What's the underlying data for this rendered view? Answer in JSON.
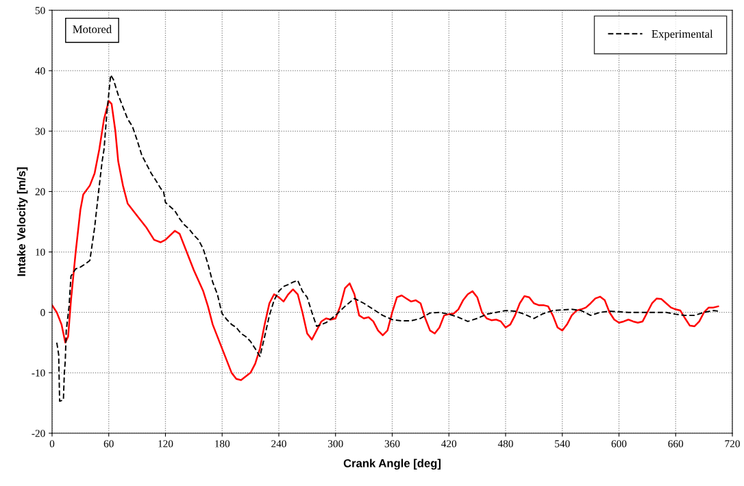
{
  "chart_data": {
    "type": "line",
    "xlabel": "Crank Angle [deg]",
    "ylabel": "Intake Velocity [m/s]",
    "xlim": [
      0,
      720
    ],
    "xticks": [
      0,
      60,
      120,
      180,
      240,
      300,
      360,
      420,
      480,
      540,
      600,
      660,
      720
    ],
    "ylim": [
      -20,
      50
    ],
    "yticks": [
      -20,
      -10,
      0,
      10,
      20,
      30,
      40,
      50
    ],
    "grid": true,
    "legend": "top right",
    "annotations": [
      "Motored"
    ],
    "series": [
      {
        "color": "#ff0000",
        "line_style": "solid",
        "x": [
          0,
          5,
          10,
          14,
          17,
          20,
          25,
          30,
          33,
          40,
          45,
          50,
          55,
          60,
          63,
          67,
          70,
          75,
          80,
          90,
          100,
          108,
          115,
          120,
          130,
          135,
          140,
          150,
          160,
          165,
          170,
          180,
          190,
          195,
          200,
          210,
          215,
          220,
          225,
          230,
          235,
          240,
          245,
          250,
          255,
          260,
          265,
          270,
          275,
          280,
          285,
          290,
          295,
          300,
          305,
          310,
          315,
          320,
          325,
          330,
          335,
          340,
          345,
          350,
          355,
          360,
          365,
          370,
          375,
          380,
          385,
          390,
          395,
          400,
          405,
          410,
          415,
          420,
          425,
          430,
          435,
          440,
          445,
          450,
          455,
          460,
          465,
          470,
          475,
          480,
          485,
          490,
          495,
          500,
          505,
          510,
          515,
          520,
          525,
          530,
          535,
          540,
          545,
          550,
          555,
          560,
          565,
          570,
          575,
          580,
          585,
          590,
          595,
          600,
          605,
          610,
          615,
          620,
          625,
          630,
          635,
          640,
          645,
          650,
          655,
          660,
          665,
          670,
          675,
          680,
          685,
          690,
          695,
          700,
          705
        ],
        "values": [
          1.2,
          0,
          -2,
          -5,
          -4,
          2,
          10,
          17,
          19.5,
          21,
          23,
          27,
          32,
          35,
          34.5,
          30,
          25,
          21,
          18,
          16,
          14,
          12,
          11.6,
          12,
          13.5,
          13,
          11,
          7,
          3.5,
          1,
          -2,
          -6,
          -10,
          -11,
          -11.2,
          -10,
          -8.5,
          -6,
          -2,
          1.5,
          3,
          2.5,
          1.8,
          3,
          3.8,
          3,
          0,
          -3.5,
          -4.5,
          -3,
          -1.5,
          -1,
          -1.2,
          -1,
          1,
          4,
          4.8,
          3,
          -0.5,
          -1,
          -0.8,
          -1.5,
          -3,
          -3.8,
          -3,
          0,
          2.5,
          2.8,
          2.3,
          1.8,
          2,
          1.5,
          -1,
          -3,
          -3.5,
          -2.5,
          -0.5,
          -0.3,
          -0.2,
          0.5,
          2,
          3,
          3.5,
          2.5,
          0,
          -1,
          -1.3,
          -1.2,
          -1.5,
          -2.5,
          -2,
          -0.5,
          1.5,
          2.7,
          2.5,
          1.5,
          1.2,
          1.2,
          1,
          -0.5,
          -2.5,
          -3,
          -2,
          -0.5,
          0.3,
          0.5,
          0.8,
          1.5,
          2.3,
          2.6,
          2,
          0,
          -1.2,
          -1.7,
          -1.5,
          -1.2,
          -1.5,
          -1.7,
          -1.5,
          0,
          1.5,
          2.3,
          2.2,
          1.5,
          0.8,
          0.5,
          0.3,
          -1,
          -2.2,
          -2.3,
          -1.5,
          0,
          0.8,
          0.8,
          1
        ]
      },
      {
        "name": "Experimental",
        "color": "#000000",
        "line_style": "dashed",
        "x": [
          5,
          7,
          8,
          12,
          13,
          14,
          15,
          18,
          20,
          25,
          30,
          35,
          40,
          45,
          50,
          53,
          55,
          58,
          62,
          65,
          70,
          75,
          80,
          85,
          90,
          95,
          100,
          105,
          110,
          115,
          118,
          120,
          125,
          130,
          135,
          140,
          145,
          150,
          155,
          160,
          165,
          170,
          175,
          178,
          180,
          185,
          190,
          195,
          200,
          205,
          210,
          215,
          220,
          225,
          230,
          235,
          240,
          245,
          250,
          255,
          260,
          265,
          270,
          275,
          280,
          285,
          290,
          300,
          310,
          320,
          330,
          340,
          350,
          360,
          370,
          380,
          390,
          400,
          410,
          420,
          430,
          440,
          450,
          460,
          470,
          480,
          490,
          500,
          510,
          520,
          530,
          540,
          550,
          560,
          570,
          580,
          590,
          600,
          610,
          620,
          630,
          640,
          650,
          660,
          670,
          680,
          690,
          700,
          705
        ],
        "values": [
          -5,
          -7,
          -14.7,
          -14.5,
          -10,
          -8,
          -3,
          1,
          6,
          7.2,
          7.5,
          8,
          8.6,
          14,
          21,
          25,
          27,
          33,
          39.3,
          38.5,
          36,
          34,
          32,
          30.8,
          28.5,
          26,
          24.5,
          23,
          21.8,
          20.5,
          20,
          18.2,
          17.5,
          16.8,
          15.5,
          14.5,
          13.8,
          12.8,
          12,
          10.5,
          8,
          5,
          3,
          1,
          -0.2,
          -1.2,
          -2,
          -2.5,
          -3.5,
          -4,
          -4.8,
          -6,
          -7.3,
          -4,
          -0.5,
          2,
          3.5,
          4.3,
          4.6,
          5,
          5.3,
          3.5,
          2.5,
          0,
          -2.3,
          -2,
          -1.7,
          -0.5,
          1,
          2.3,
          1.5,
          0.5,
          -0.5,
          -1.2,
          -1.4,
          -1.4,
          -1,
          -0.1,
          0,
          -0.3,
          -0.8,
          -1.5,
          -1,
          -0.3,
          0,
          0.3,
          0.2,
          -0.3,
          -1,
          -0.2,
          0.3,
          0.4,
          0.5,
          0.3,
          -0.5,
          0,
          0.2,
          0.1,
          0,
          0,
          0,
          0,
          0,
          -0.3,
          -0.5,
          -0.5,
          0,
          0.3,
          0.2
        ]
      }
    ]
  }
}
